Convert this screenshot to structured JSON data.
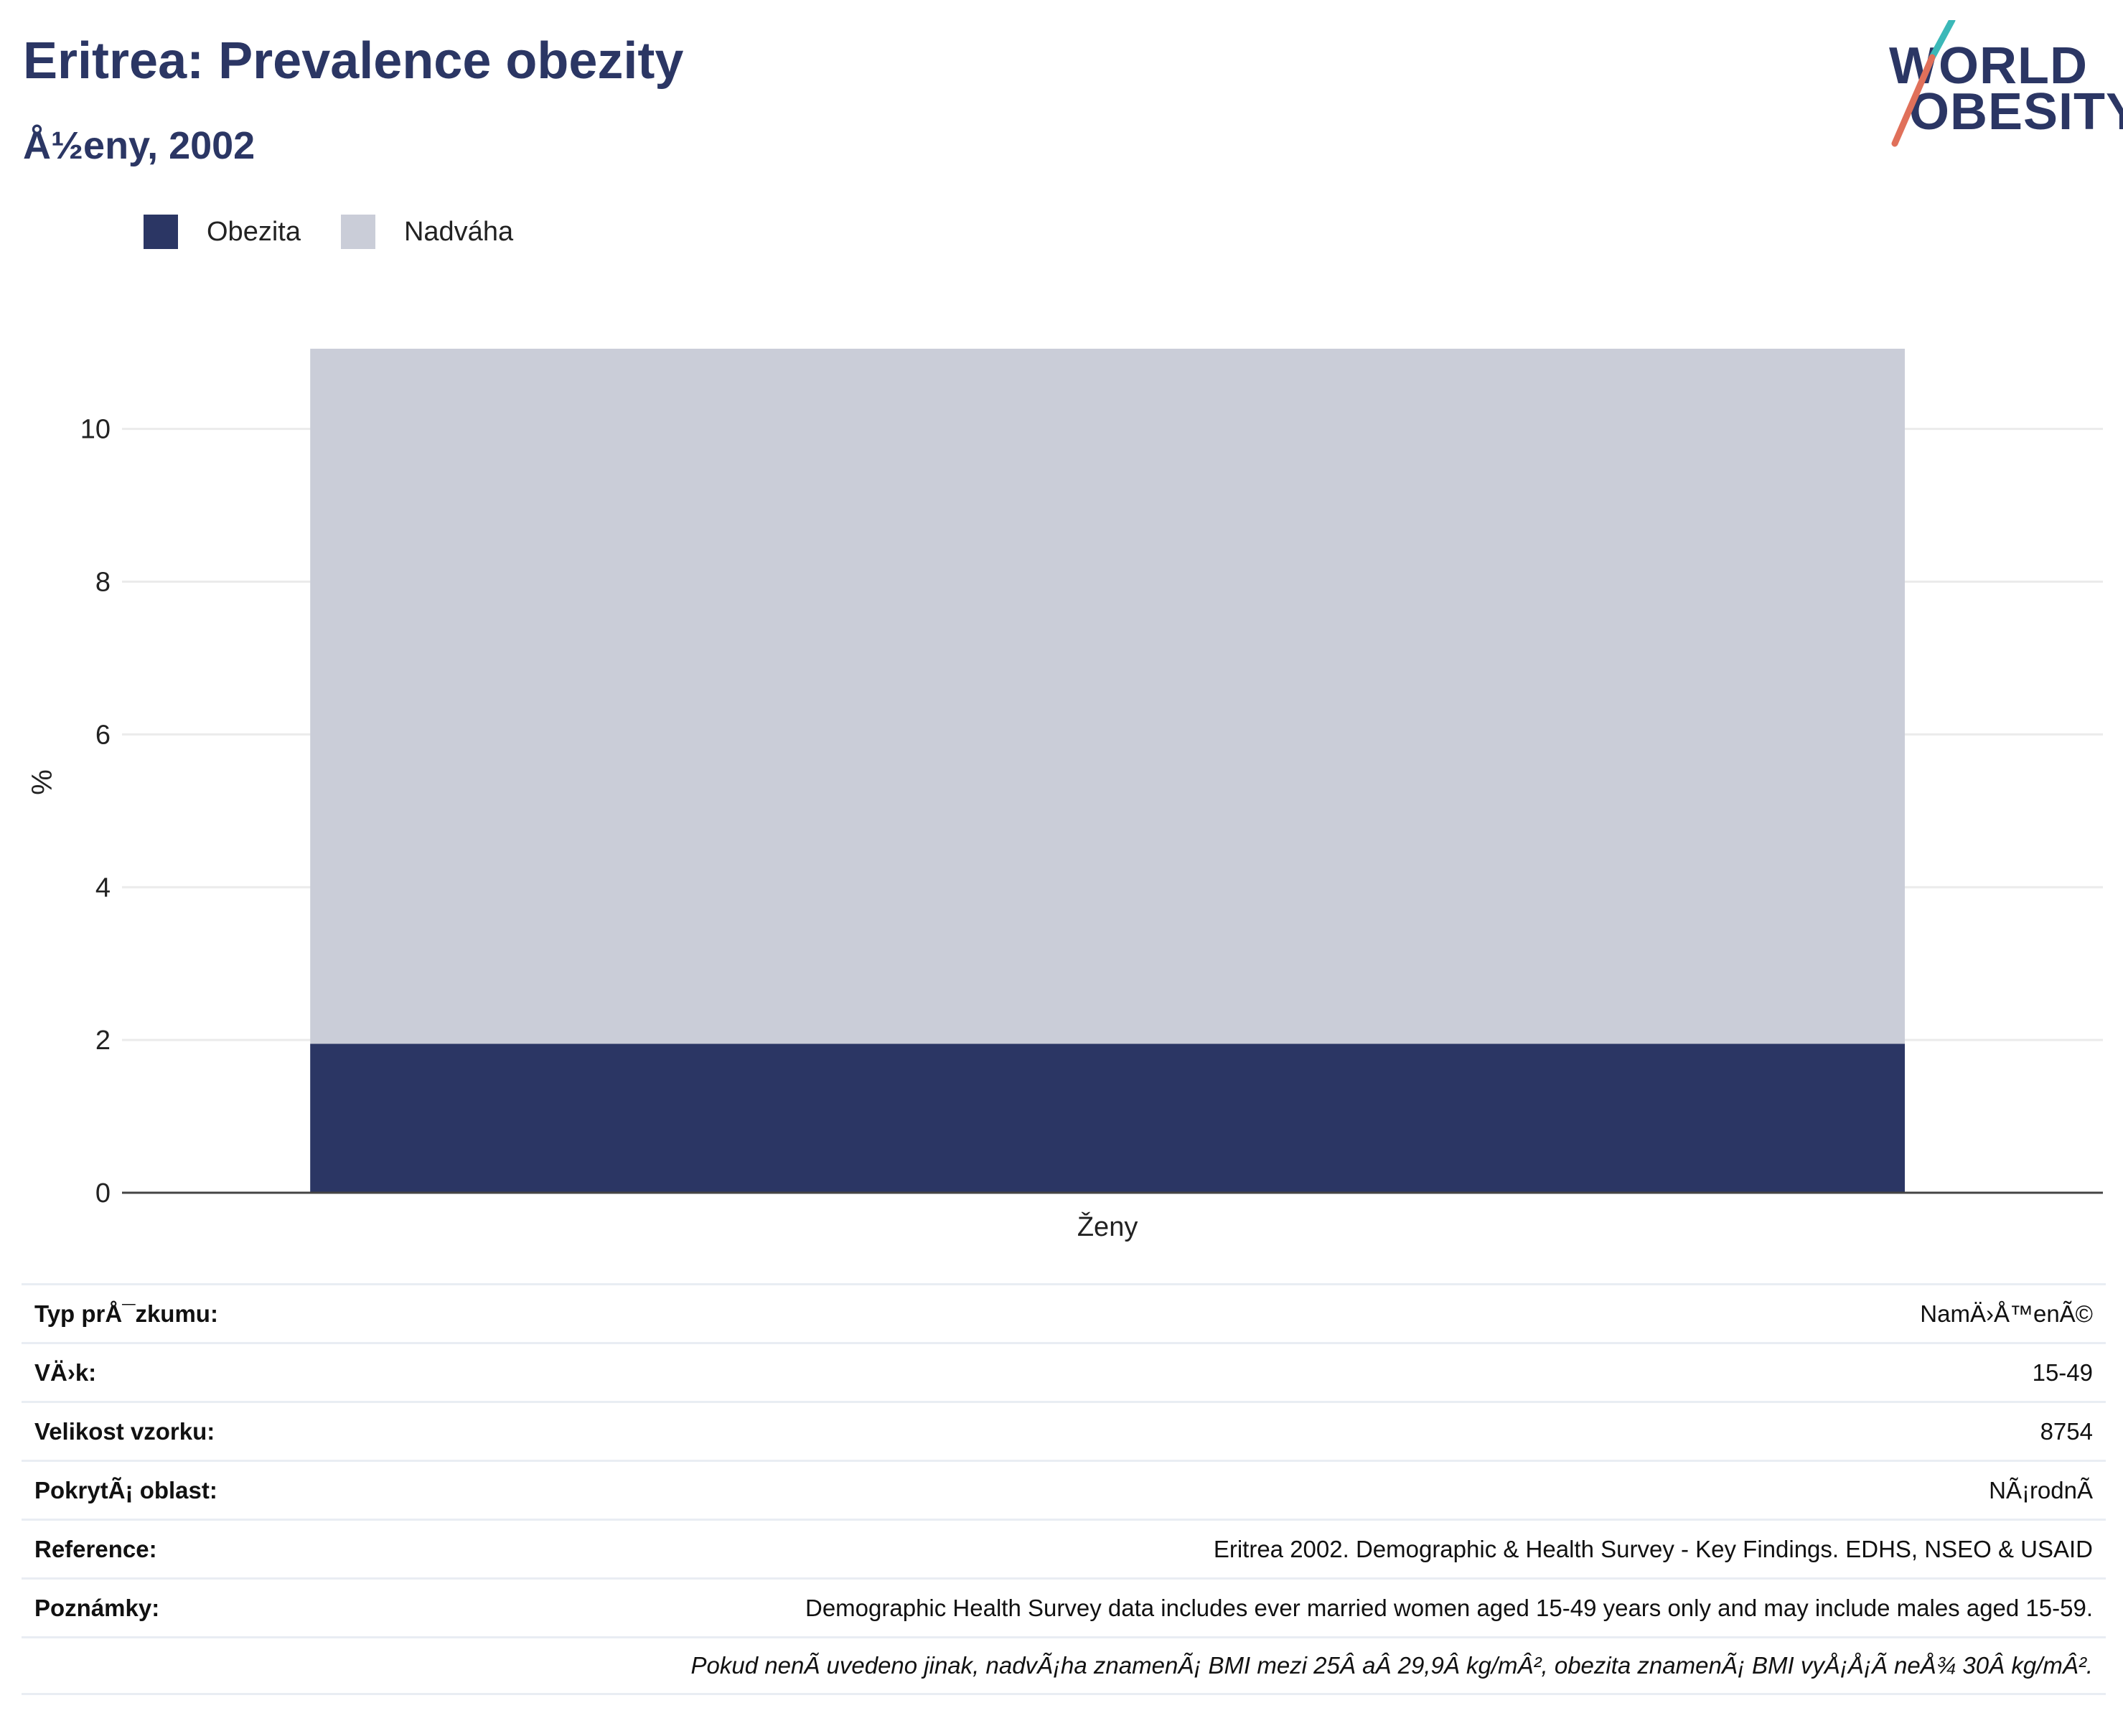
{
  "header": {
    "title": "Eritrea: Prevalence obezity",
    "subtitle": "Å½eny, 2002"
  },
  "logo": {
    "line1": "WORLD",
    "line2": "OBESITY",
    "accent_teal": "#3bb8b8",
    "accent_red": "#e0705a"
  },
  "legend": [
    {
      "label": "Obezita",
      "color": "#2b3664"
    },
    {
      "label": "Nadváha",
      "color": "#cacdd8"
    }
  ],
  "chart_data": {
    "type": "bar",
    "stacked": true,
    "categories": [
      "Ženy"
    ],
    "series": [
      {
        "name": "Obezita",
        "values": [
          1.95
        ],
        "color": "#2b3664"
      },
      {
        "name": "Nadváha",
        "values": [
          9.1
        ],
        "color": "#cacdd8"
      }
    ],
    "ylabel": "%",
    "ylim": [
      0,
      11.5
    ],
    "yticks": [
      0,
      2,
      4,
      6,
      8,
      10
    ],
    "grid": true,
    "legend_position": "top-left"
  },
  "info": [
    {
      "label": "Typ prÅ¯zkumu:",
      "value": "NamÄ›Å™enÃ©"
    },
    {
      "label": "VÄ›k:",
      "value": "15-49"
    },
    {
      "label": "Velikost vzorku:",
      "value": "8754"
    },
    {
      "label": "PokrytÃ¡ oblast:",
      "value": "NÃ¡rodnÃ"
    },
    {
      "label": "Reference:",
      "value": "Eritrea 2002. Demographic & Health Survey - Key Findings. EDHS, NSEO & USAID"
    },
    {
      "label": "Poznámky:",
      "value": "Demographic Health Survey data includes ever married women aged 15-49 years only and may include males aged 15-59."
    }
  ],
  "footnote": "Pokud nenÃ uvedeno jinak, nadvÃ¡ha znamenÃ¡ BMI mezi 25Â aÂ 29,9Â kg/mÂ², obezita znamenÃ¡ BMI vyÅ¡Å¡Ã neÅ¾ 30Â kg/mÂ²."
}
